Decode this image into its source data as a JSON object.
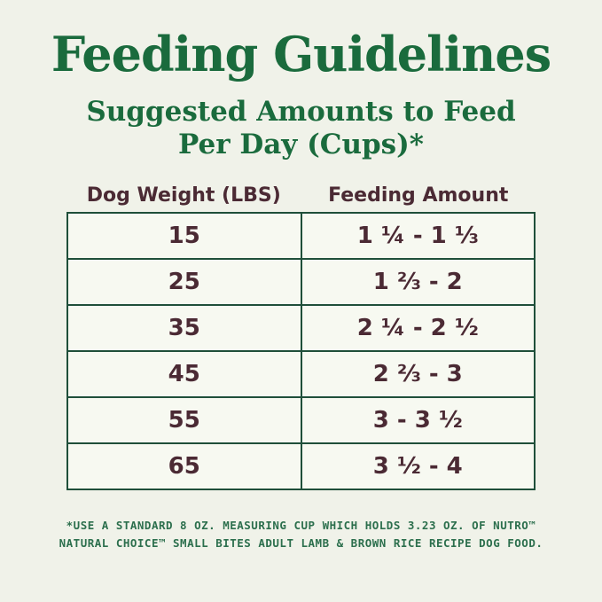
{
  "page": {
    "title": "Feeding Guidelines",
    "subtitle_line1": "Suggested Amounts to Feed",
    "subtitle_line2": "Per Day (Cups)*",
    "colors": {
      "background": "#f0f2e9",
      "heading_green": "#1a6b3d",
      "table_border_green": "#1f4f3a",
      "table_text_maroon": "#4b2a34",
      "cell_background": "#f7f9f1",
      "footnote_green": "#2c6f4d"
    }
  },
  "table": {
    "headers": {
      "weight": "Dog Weight (LBS)",
      "amount": "Feeding Amount"
    },
    "rows": [
      {
        "weight": "15",
        "amount": "1 ¼ - 1 ⅓"
      },
      {
        "weight": "25",
        "amount": "1 ⅔ - 2"
      },
      {
        "weight": "35",
        "amount": "2 ¼ - 2 ½"
      },
      {
        "weight": "45",
        "amount": "2 ⅔ - 3"
      },
      {
        "weight": "55",
        "amount": "3 - 3 ½"
      },
      {
        "weight": "65",
        "amount": "3 ½ - 4"
      }
    ]
  },
  "footnote": {
    "line1": "*USE A STANDARD 8 OZ. MEASURING CUP WHICH HOLDS 3.23 OZ. OF NUTRO™",
    "line2": "NATURAL CHOICE™ SMALL BITES ADULT LAMB & BROWN RICE RECIPE DOG FOOD."
  },
  "chart_data": {
    "type": "table",
    "title": "Feeding Guidelines",
    "subtitle": "Suggested Amounts to Feed Per Day (Cups)*",
    "columns": [
      "Dog Weight (LBS)",
      "Feeding Amount"
    ],
    "rows": [
      [
        "15",
        "1 ¼ - 1 ⅓"
      ],
      [
        "25",
        "1 ⅔ - 2"
      ],
      [
        "35",
        "2 ¼ - 2 ½"
      ],
      [
        "45",
        "2 ⅔ - 3"
      ],
      [
        "55",
        "3 - 3 ½"
      ],
      [
        "65",
        "3 ½ - 4"
      ]
    ],
    "units": "cups per day",
    "footnote": "*USE A STANDARD 8 OZ. MEASURING CUP WHICH HOLDS 3.23 OZ. OF NUTRO™ NATURAL CHOICE™ SMALL BITES ADULT LAMB & BROWN RICE RECIPE DOG FOOD."
  }
}
